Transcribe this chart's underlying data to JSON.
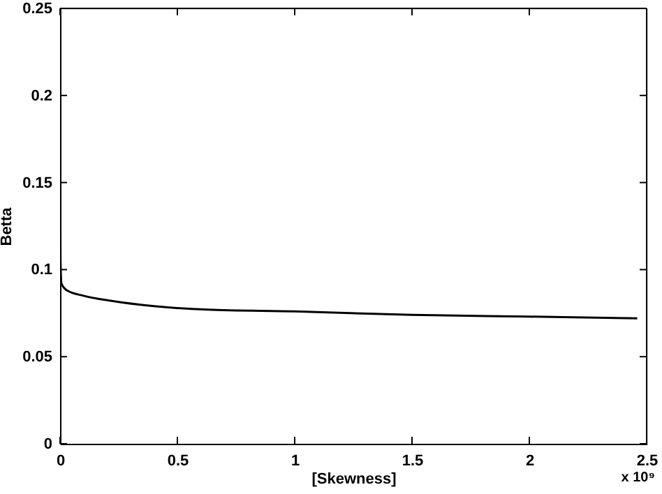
{
  "chart_data": {
    "type": "line",
    "xlabel": "[Skewness]",
    "ylabel": "Betta",
    "annotations": [
      "x 10⁹"
    ],
    "x": [
      0,
      0.002,
      0.006,
      0.03,
      0.1,
      0.22,
      0.4,
      0.63,
      1.0,
      1.5,
      2.0,
      2.46
    ],
    "series": [
      {
        "color": "#000000",
        "values": [
          0.183,
          0.105,
          0.092,
          0.088,
          0.085,
          0.082,
          0.079,
          0.077,
          0.076,
          0.074,
          0.073,
          0.072
        ]
      }
    ],
    "xlim": [
      0,
      2.5
    ],
    "xticks": [
      0,
      0.5,
      1,
      1.5,
      2,
      2.5
    ],
    "ylim": [
      0,
      0.25
    ],
    "yticks": [
      0,
      0.05,
      0.1,
      0.15,
      0.2,
      0.25
    ],
    "grid": false,
    "marker": "none",
    "line_style": "solid"
  }
}
